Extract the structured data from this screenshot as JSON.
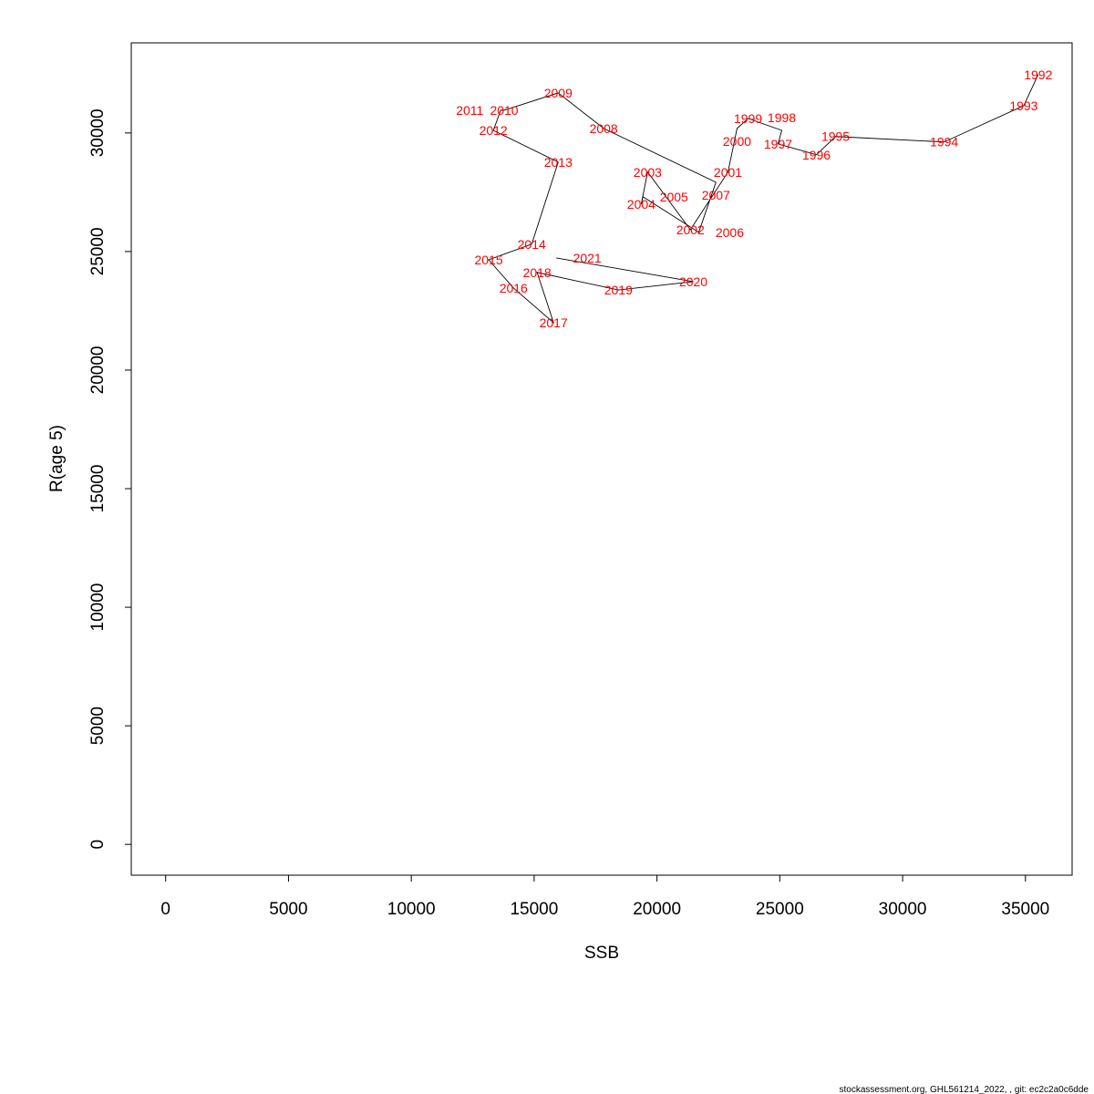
{
  "chart_data": {
    "type": "line",
    "xlabel": "SSB",
    "ylabel": "R(age 5)",
    "xlim": [
      -1400,
      36900
    ],
    "ylim": [
      -1300,
      33800
    ],
    "xticks": [
      0,
      5000,
      10000,
      15000,
      20000,
      25000,
      30000,
      35000
    ],
    "yticks": [
      0,
      5000,
      10000,
      15000,
      20000,
      25000,
      30000
    ],
    "label_color": "#ff0000",
    "line_color": "#000000",
    "grid": false,
    "points": [
      {
        "label": "1992",
        "x": 35520,
        "y": 32460
      },
      {
        "label": "1993",
        "x": 34930,
        "y": 31150
      },
      {
        "label": "1994",
        "x": 31690,
        "y": 29620
      },
      {
        "label": "1995",
        "x": 27270,
        "y": 29850
      },
      {
        "label": "1996",
        "x": 26490,
        "y": 29080
      },
      {
        "label": "1997",
        "x": 24930,
        "y": 29540
      },
      {
        "label": "1998",
        "x": 25080,
        "y": 30110
      },
      {
        "label": "1999",
        "x": 23710,
        "y": 30610
      },
      {
        "label": "2000",
        "x": 23260,
        "y": 30190
      },
      {
        "label": "2001",
        "x": 22890,
        "y": 28350
      },
      {
        "label": "2002",
        "x": 21360,
        "y": 25920
      },
      {
        "label": "2003",
        "x": 19620,
        "y": 28350
      },
      {
        "label": "2004",
        "x": 19360,
        "y": 27000
      },
      {
        "label": "2005",
        "x": 19430,
        "y": 27310
      },
      {
        "label": "2006",
        "x": 21700,
        "y": 25810
      },
      {
        "label": "2007",
        "x": 22400,
        "y": 27920
      },
      {
        "label": "2008",
        "x": 17830,
        "y": 30190
      },
      {
        "label": "2009",
        "x": 15980,
        "y": 31690
      },
      {
        "label": "2010",
        "x": 13780,
        "y": 30960
      },
      {
        "label": "2011",
        "x": 13640,
        "y": 30960
      },
      {
        "label": "2012",
        "x": 13340,
        "y": 30110
      },
      {
        "label": "2013",
        "x": 15980,
        "y": 28770
      },
      {
        "label": "2014",
        "x": 14900,
        "y": 25310
      },
      {
        "label": "2015",
        "x": 13150,
        "y": 24650
      },
      {
        "label": "2016",
        "x": 14160,
        "y": 23460
      },
      {
        "label": "2017",
        "x": 15790,
        "y": 22000
      },
      {
        "label": "2018",
        "x": 15120,
        "y": 24120
      },
      {
        "label": "2019",
        "x": 18430,
        "y": 23380
      },
      {
        "label": "2020",
        "x": 21480,
        "y": 23730
      },
      {
        "label": "2021",
        "x": 15900,
        "y": 24730
      }
    ]
  },
  "footer": "stockassessment.org, GHL561214_2022,  , git: ec2c2a0c6dde"
}
